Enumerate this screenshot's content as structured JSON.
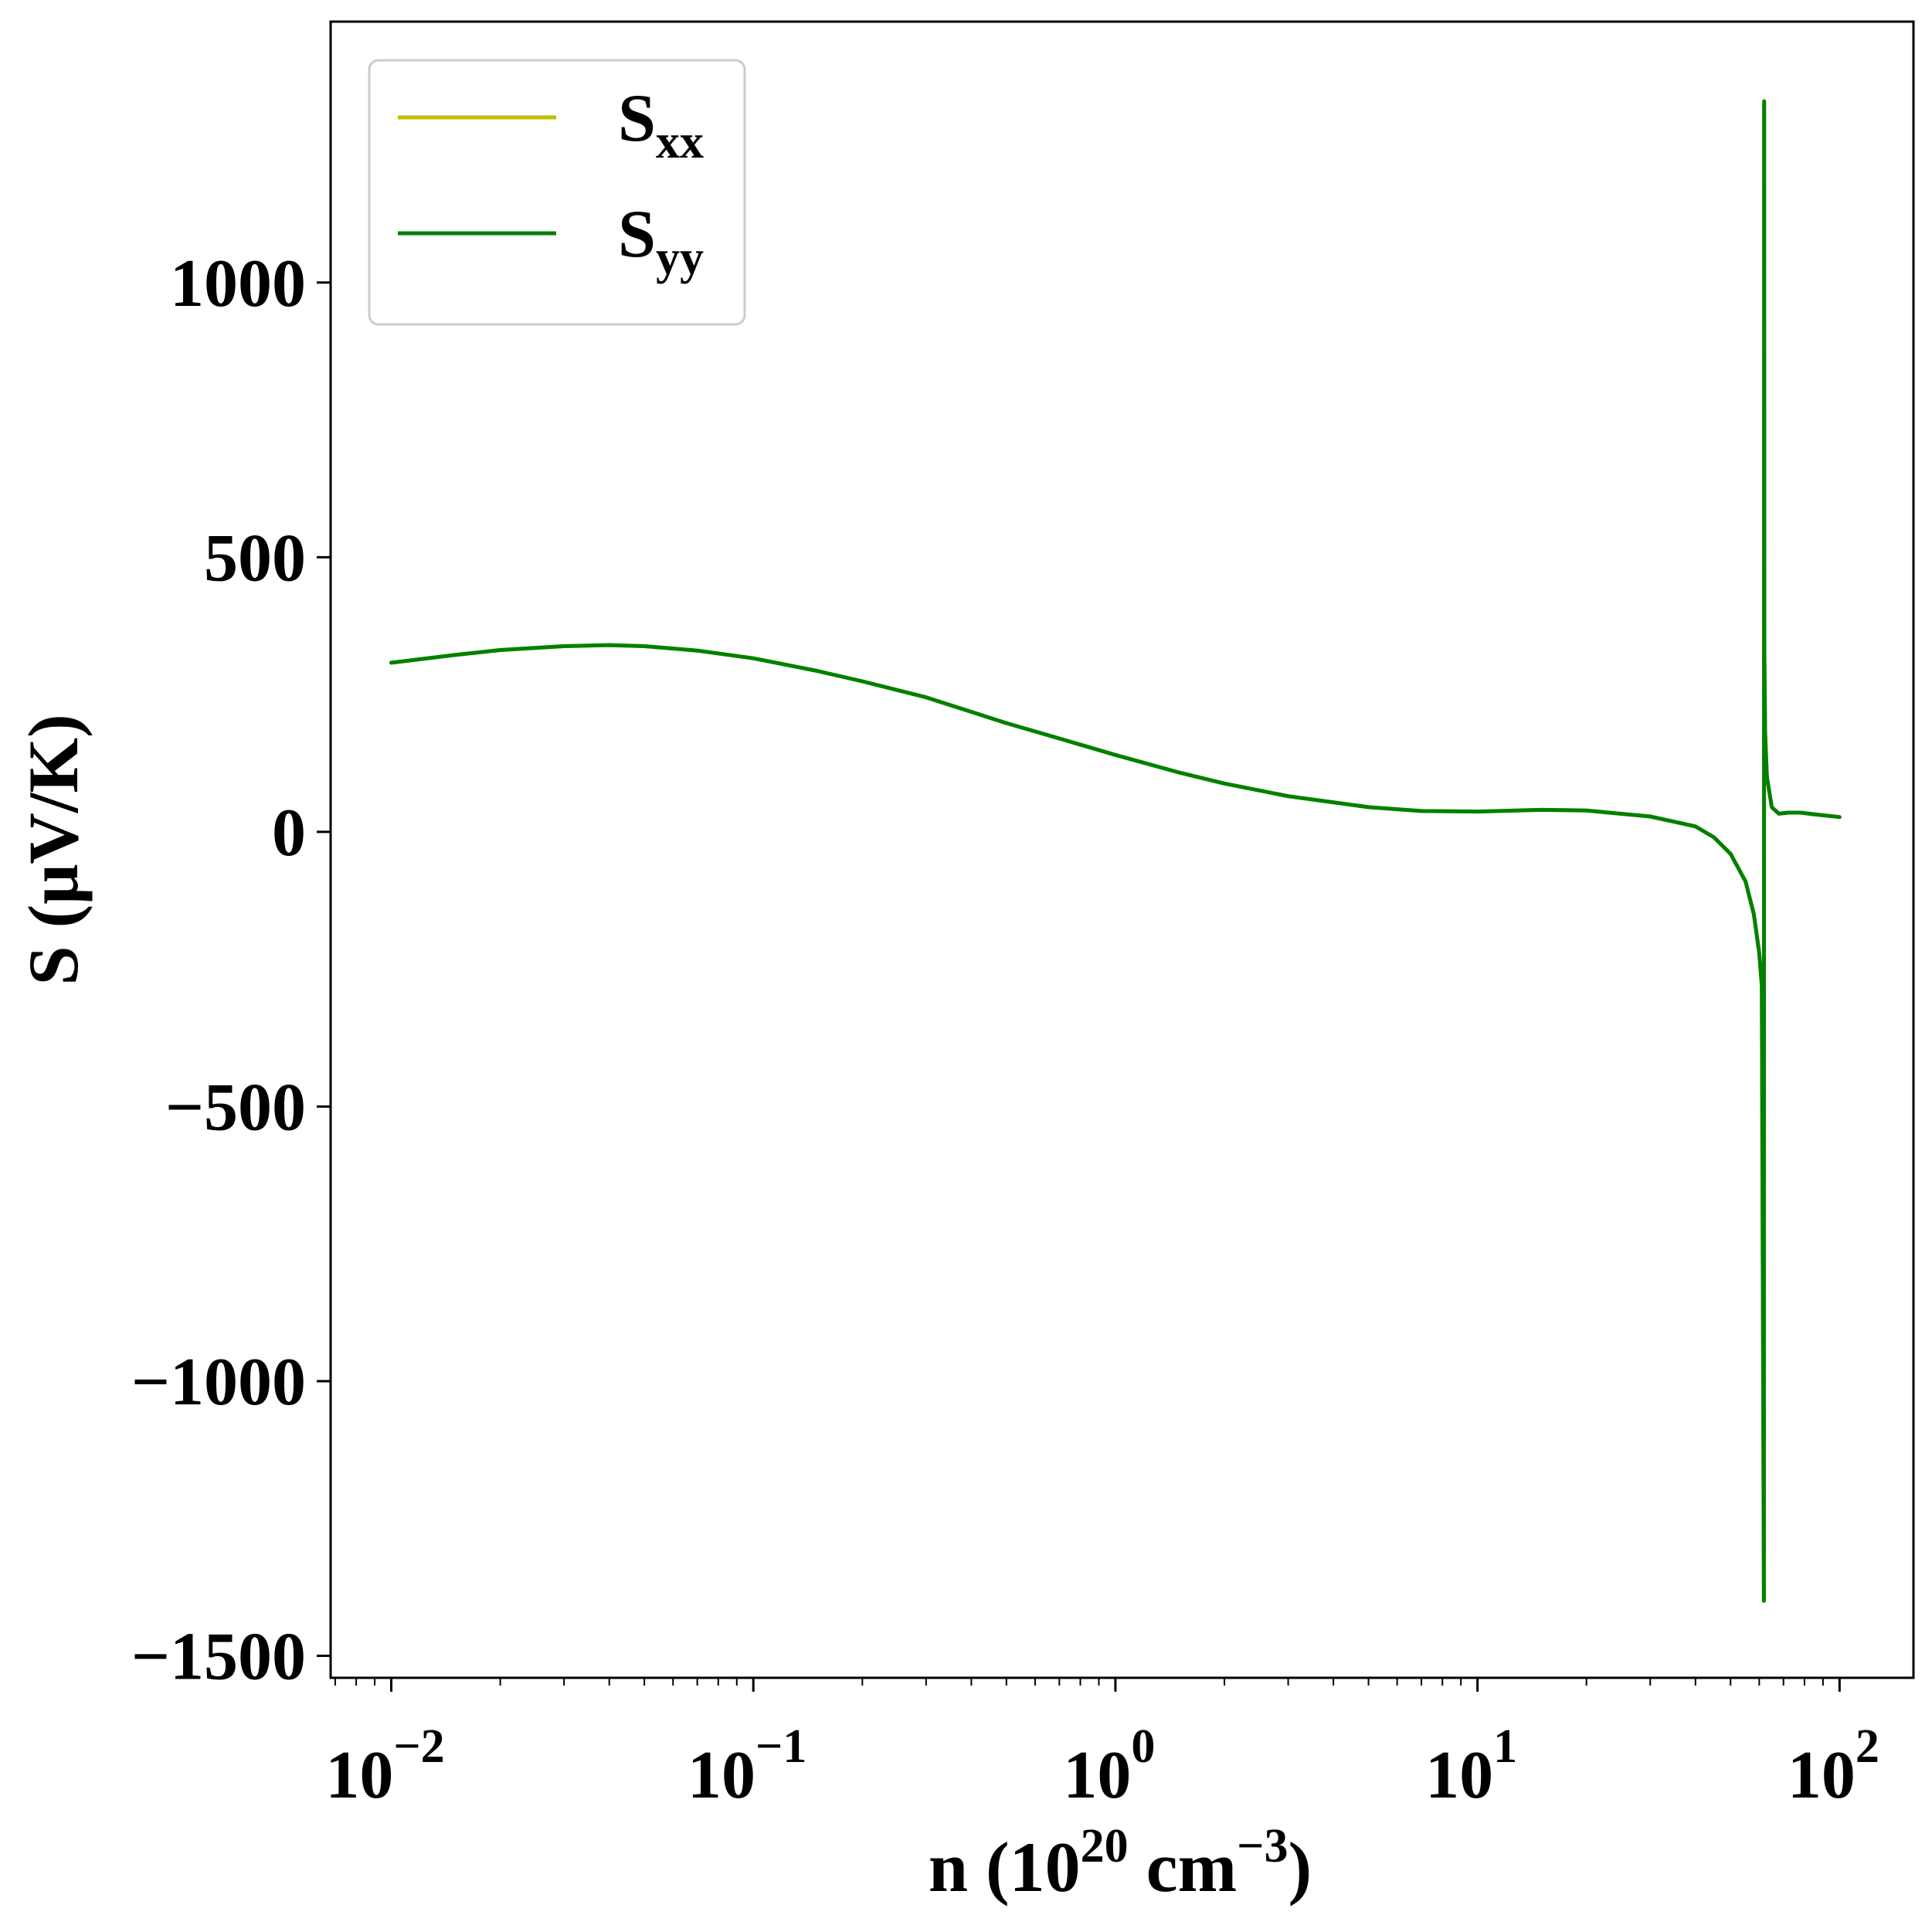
{
  "chart_data": {
    "type": "line",
    "xscale": "log",
    "xlim": [
      0.0068,
      160
    ],
    "ylim": [
      -1540,
      1475
    ],
    "grid": false,
    "legend_placement": "top-left",
    "xlabel": {
      "main": "n (10",
      "exp": "20",
      "mid": " cm",
      "unit_exp": "−3",
      "close": ")"
    },
    "ylabel": "S (μV/K)",
    "x_ticks": [
      {
        "value": 0.01,
        "base": "10",
        "exp": "−2"
      },
      {
        "value": 0.1,
        "base": "10",
        "exp": "−1"
      },
      {
        "value": 1,
        "base": "10",
        "exp": "0"
      },
      {
        "value": 10,
        "base": "10",
        "exp": "1"
      },
      {
        "value": 100,
        "base": "10",
        "exp": "2"
      }
    ],
    "y_ticks": [
      {
        "value": 1000,
        "label": "1000"
      },
      {
        "value": 500,
        "label": "500"
      },
      {
        "value": 0,
        "label": "0"
      },
      {
        "value": -500,
        "label": "−500"
      },
      {
        "value": -1000,
        "label": "−1000"
      },
      {
        "value": -1500,
        "label": "−1500"
      }
    ],
    "series": [
      {
        "name": "S_xx",
        "legend_main": "S",
        "legend_sub": "xx",
        "color": "#bfbf00",
        "x": [
          0.01,
          0.015,
          0.02,
          0.03,
          0.04,
          0.05,
          0.07,
          0.1,
          0.15,
          0.2,
          0.3,
          0.5,
          0.7,
          1,
          1.5,
          2,
          3,
          5,
          7,
          10,
          15,
          20,
          30,
          40,
          45,
          50,
          55,
          58,
          60,
          61,
          61.8,
          61.9,
          62,
          62.3,
          63,
          65,
          68,
          72,
          78,
          85,
          100
        ],
        "y": [
          308,
          322,
          331,
          338,
          340,
          338,
          330,
          316,
          293,
          274,
          245,
          198,
          170,
          140,
          108,
          88,
          65,
          45,
          38,
          37,
          40,
          39,
          28,
          10,
          -10,
          -40,
          -90,
          -150,
          -220,
          -280,
          -1400,
          1330,
          320,
          180,
          100,
          45,
          33,
          35,
          35,
          32,
          27
        ]
      },
      {
        "name": "S_yy",
        "legend_main": "S",
        "legend_sub": "yy",
        "color": "#008000",
        "x": [
          0.01,
          0.015,
          0.02,
          0.03,
          0.04,
          0.05,
          0.07,
          0.1,
          0.15,
          0.2,
          0.3,
          0.5,
          0.7,
          1,
          1.5,
          2,
          3,
          5,
          7,
          10,
          15,
          20,
          30,
          40,
          45,
          50,
          55,
          58,
          60,
          61,
          61.8,
          61.9,
          62,
          62.3,
          63,
          65,
          68,
          72,
          78,
          85,
          100
        ],
        "y": [
          308,
          322,
          331,
          338,
          340,
          338,
          330,
          316,
          293,
          274,
          245,
          198,
          170,
          140,
          108,
          88,
          65,
          45,
          38,
          37,
          40,
          39,
          28,
          10,
          -10,
          -40,
          -90,
          -150,
          -220,
          -280,
          -1400,
          1330,
          320,
          180,
          100,
          45,
          33,
          35,
          35,
          32,
          27
        ]
      }
    ]
  }
}
